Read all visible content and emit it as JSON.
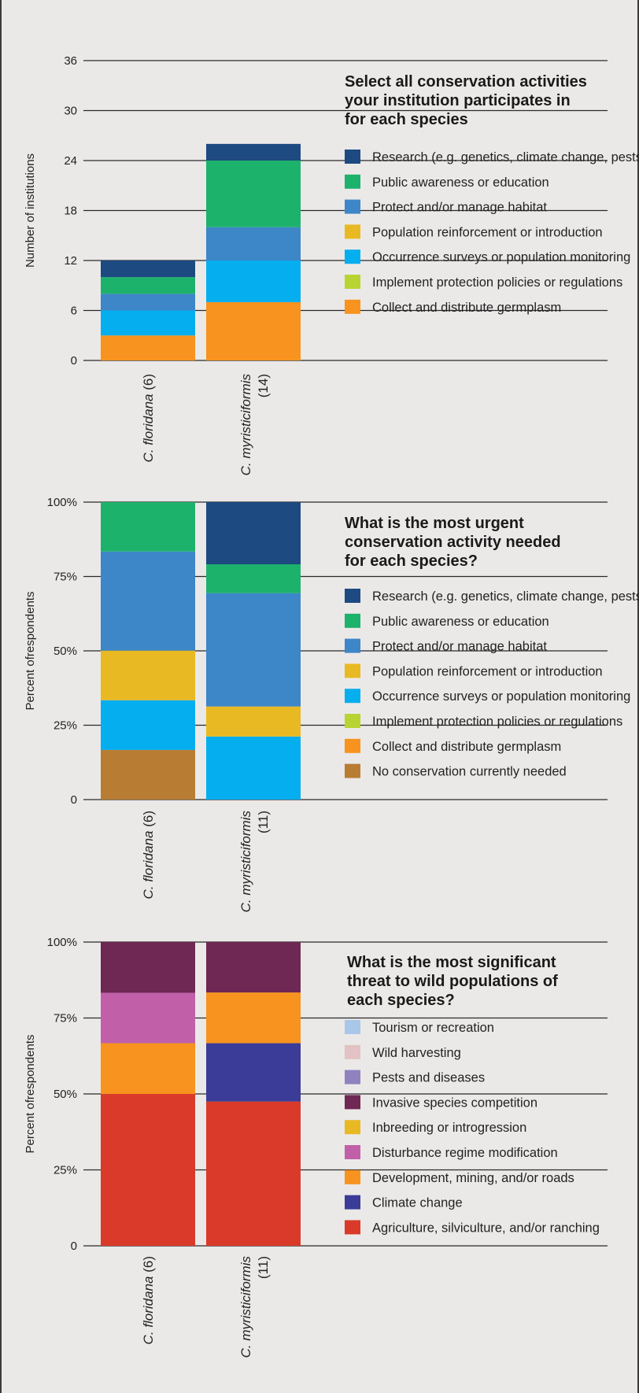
{
  "chart_data": [
    {
      "type": "bar",
      "stacked": true,
      "title": "Select all conservation activities your institution participates in for each species",
      "ylabel": "Number of institutions",
      "ylim": [
        0,
        36
      ],
      "yticks": [
        "0",
        "6",
        "12",
        "18",
        "24",
        "30",
        "36"
      ],
      "categories": [
        {
          "name": "C. floridana",
          "count": "(6)"
        },
        {
          "name": "C. myristiciformis",
          "count": "(14)"
        }
      ],
      "legend": [
        {
          "label": "Research (e.g. genetics, climate change, pests)",
          "color": "#1d4a80"
        },
        {
          "label": "Public awareness or education",
          "color": "#1db26c"
        },
        {
          "label": "Protect and/or manage habitat",
          "color": "#3d86c8"
        },
        {
          "label": "Population reinforcement or introduction",
          "color": "#e8b923"
        },
        {
          "label": "Occurrence surveys or population monitoring",
          "color": "#05aeef"
        },
        {
          "label": "Implement protection policies or regulations",
          "color": "#b8d432"
        },
        {
          "label": "Collect and distribute germplasm",
          "color": "#f7931e"
        }
      ],
      "series": [
        {
          "name": "Collect and distribute germplasm",
          "color": "#f7931e",
          "values": [
            3,
            7
          ]
        },
        {
          "name": "Implement protection policies or regulations",
          "color": "#b8d432",
          "values": [
            0,
            0
          ]
        },
        {
          "name": "Occurrence surveys or population monitoring",
          "color": "#05aeef",
          "values": [
            3,
            5
          ]
        },
        {
          "name": "Population reinforcement or introduction",
          "color": "#e8b923",
          "values": [
            0,
            0
          ]
        },
        {
          "name": "Protect and/or manage habitat",
          "color": "#3d86c8",
          "values": [
            2,
            4
          ]
        },
        {
          "name": "Public awareness or education",
          "color": "#1db26c",
          "values": [
            2,
            8
          ]
        },
        {
          "name": "Research (e.g. genetics, climate change, pests)",
          "color": "#1d4a80",
          "values": [
            2,
            2
          ]
        }
      ]
    },
    {
      "type": "bar",
      "stacked": true,
      "title": "What is the most urgent conservation activity needed for each species?",
      "ylabel": "Percent ofrespondents",
      "ylim": [
        0,
        100
      ],
      "yticks": [
        "0",
        "25%",
        "50%",
        "75%",
        "100%"
      ],
      "categories": [
        {
          "name": "C. floridana",
          "count": "(6)"
        },
        {
          "name": "C. myristiciformis",
          "count": "(11)"
        }
      ],
      "legend": [
        {
          "label": "Research (e.g. genetics, climate change, pests)",
          "color": "#1d4a80"
        },
        {
          "label": "Public awareness or education",
          "color": "#1db26c"
        },
        {
          "label": "Protect and/or manage habitat",
          "color": "#3d86c8"
        },
        {
          "label": "Population reinforcement or introduction",
          "color": "#e8b923"
        },
        {
          "label": "Occurrence surveys or population monitoring",
          "color": "#05aeef"
        },
        {
          "label": "Implement protection policies or regulations",
          "color": "#b8d432"
        },
        {
          "label": "Collect and distribute germplasm",
          "color": "#f7931e"
        },
        {
          "label": "No conservation currently needed",
          "color": "#b87d33"
        }
      ],
      "series": [
        {
          "name": "No conservation currently needed",
          "color": "#b87d33",
          "values": [
            16.7,
            0
          ]
        },
        {
          "name": "Collect and distribute germplasm",
          "color": "#f7931e",
          "values": [
            0,
            0
          ]
        },
        {
          "name": "Implement protection policies or regulations",
          "color": "#b8d432",
          "values": [
            0,
            0
          ]
        },
        {
          "name": "Occurrence surveys or population monitoring",
          "color": "#05aeef",
          "values": [
            16.7,
            21.2
          ]
        },
        {
          "name": "Population reinforcement or introduction",
          "color": "#e8b923",
          "values": [
            16.7,
            10.1
          ]
        },
        {
          "name": "Protect and/or manage habitat",
          "color": "#3d86c8",
          "values": [
            33.3,
            38.1
          ]
        },
        {
          "name": "Public awareness or education",
          "color": "#1db26c",
          "values": [
            16.6,
            9.7
          ]
        },
        {
          "name": "Research (e.g. genetics, climate change, pests)",
          "color": "#1d4a80",
          "values": [
            0,
            20.9
          ]
        }
      ]
    },
    {
      "type": "bar",
      "stacked": true,
      "title": "What is the most significant threat to wild populations of each species?",
      "ylabel": "Percent ofrespondents",
      "ylim": [
        0,
        100
      ],
      "yticks": [
        "0",
        "25%",
        "50%",
        "75%",
        "100%"
      ],
      "categories": [
        {
          "name": "C. floridana",
          "count": "(6)"
        },
        {
          "name": "C. myristiciformis",
          "count": "(11)"
        }
      ],
      "legend": [
        {
          "label": "Tourism or recreation",
          "color": "#a9c7e9"
        },
        {
          "label": "Wild harvesting",
          "color": "#e2c2c4"
        },
        {
          "label": "Pests and diseases",
          "color": "#8f82bf"
        },
        {
          "label": "Invasive species competition",
          "color": "#6e2853"
        },
        {
          "label": "Inbreeding or introgression",
          "color": "#e8b923"
        },
        {
          "label": "Disturbance regime modification",
          "color": "#c160a9"
        },
        {
          "label": "Development, mining, and/or roads",
          "color": "#f7931e"
        },
        {
          "label": "Climate change",
          "color": "#3a3c97"
        },
        {
          "label": "Agriculture, silviculture, and/or ranching",
          "color": "#d93a29"
        }
      ],
      "series": [
        {
          "name": "Agriculture, silviculture, and/or ranching",
          "color": "#d93a29",
          "values": [
            50,
            47.5
          ]
        },
        {
          "name": "Climate change",
          "color": "#3a3c97",
          "values": [
            0,
            19.2
          ]
        },
        {
          "name": "Development, mining, and/or roads",
          "color": "#f7931e",
          "values": [
            16.7,
            16.7
          ]
        },
        {
          "name": "Disturbance regime modification",
          "color": "#c160a9",
          "values": [
            16.6,
            0
          ]
        },
        {
          "name": "Inbreeding or introgression",
          "color": "#e8b923",
          "values": [
            0,
            0
          ]
        },
        {
          "name": "Invasive species competition",
          "color": "#6e2853",
          "values": [
            16.7,
            16.6
          ]
        },
        {
          "name": "Pests and diseases",
          "color": "#8f82bf",
          "values": [
            0,
            0
          ]
        },
        {
          "name": "Wild harvesting",
          "color": "#e2c2c4",
          "values": [
            0,
            0
          ]
        },
        {
          "name": "Tourism or recreation",
          "color": "#a9c7e9",
          "values": [
            0,
            0
          ]
        }
      ]
    }
  ]
}
